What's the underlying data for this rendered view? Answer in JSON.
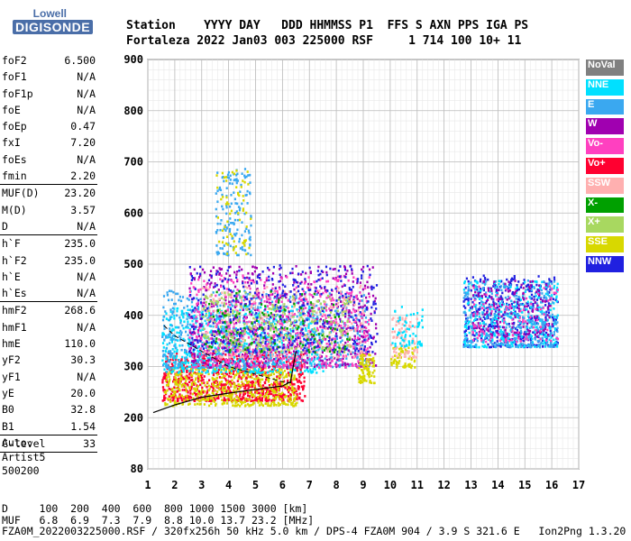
{
  "logo": {
    "top": "Lowell",
    "bottom": "DIGISONDE"
  },
  "header": {
    "line1": "Station    YYYY DAY   DDD HHMMSS P1  FFS S AXN PPS IGA PS",
    "line2": "Fortaleza 2022 Jan03 003 225000 RSF     1 714 100 10+ 11"
  },
  "params": [
    {
      "k": "foF2",
      "v": "6.500"
    },
    {
      "k": "foF1",
      "v": "N/A"
    },
    {
      "k": "foF1p",
      "v": "N/A"
    },
    {
      "k": "foE",
      "v": "N/A"
    },
    {
      "k": "foEp",
      "v": "0.47"
    },
    {
      "k": "fxI",
      "v": "7.20"
    },
    {
      "k": "foEs",
      "v": "N/A"
    },
    {
      "k": "fmin",
      "v": "2.20"
    },
    {
      "sep": true
    },
    {
      "k": "MUF(D)",
      "v": "23.20"
    },
    {
      "k": "M(D)",
      "v": "3.57"
    },
    {
      "k": "D",
      "v": "N/A"
    },
    {
      "sep": true
    },
    {
      "k": "h`F",
      "v": "235.0"
    },
    {
      "k": "h`F2",
      "v": "235.0"
    },
    {
      "k": "h`E",
      "v": "N/A"
    },
    {
      "k": "h`Es",
      "v": "N/A"
    },
    {
      "sep": true
    },
    {
      "k": "hmF2",
      "v": "268.6"
    },
    {
      "k": "hmF1",
      "v": "N/A"
    },
    {
      "k": "hmE",
      "v": "110.0"
    },
    {
      "k": "yF2",
      "v": "30.3"
    },
    {
      "k": "yF1",
      "v": "N/A"
    },
    {
      "k": "yE",
      "v": "20.0"
    },
    {
      "k": "B0",
      "v": "32.8"
    },
    {
      "k": "B1",
      "v": "1.54"
    },
    {
      "sep": true
    },
    {
      "k": "C-level",
      "v": "33"
    },
    {
      "sep": true
    }
  ],
  "auto": {
    "l1": "Auto:",
    "l2": "Artist5",
    "l3": "500200"
  },
  "legend": [
    {
      "label": "NoVal",
      "color": "#808080"
    },
    {
      "label": "NNE",
      "color": "#00e0ff"
    },
    {
      "label": "E",
      "color": "#3aa8f0"
    },
    {
      "label": "W",
      "color": "#a000b0"
    },
    {
      "label": "Vo-",
      "color": "#ff40c0"
    },
    {
      "label": "Vo+",
      "color": "#ff0030"
    },
    {
      "label": "SSW",
      "color": "#ffb0b0"
    },
    {
      "label": "X-",
      "color": "#00a000"
    },
    {
      "label": "X+",
      "color": "#a8d860"
    },
    {
      "label": "SSE",
      "color": "#d8d800"
    },
    {
      "label": "NNW",
      "color": "#2020e0"
    }
  ],
  "chart_data": {
    "type": "scatter",
    "xlabel": "",
    "ylabel": "",
    "xlim": [
      1,
      17
    ],
    "y_ticks": [
      80,
      200,
      300,
      400,
      500,
      600,
      700,
      800,
      900
    ],
    "x_ticks": [
      1,
      2,
      3,
      4,
      5,
      6,
      7,
      8,
      9,
      10,
      11,
      12,
      13,
      14,
      15,
      16,
      17
    ],
    "grid": true,
    "clusters": [
      {
        "series": "Vo+",
        "color": "#ff0030",
        "xr": [
          1.5,
          6.8
        ],
        "yr": [
          235,
          330
        ],
        "n": 900
      },
      {
        "series": "SSE",
        "color": "#d8d800",
        "xr": [
          1.6,
          6.5
        ],
        "yr": [
          225,
          300
        ],
        "n": 500
      },
      {
        "series": "NNE",
        "color": "#00e0ff",
        "xr": [
          1.5,
          7.5
        ],
        "yr": [
          290,
          420
        ],
        "n": 700
      },
      {
        "series": "E",
        "color": "#3aa8f0",
        "xr": [
          1.5,
          9.2
        ],
        "yr": [
          300,
          450
        ],
        "n": 700
      },
      {
        "series": "W",
        "color": "#a000b0",
        "xr": [
          2.5,
          9.5
        ],
        "yr": [
          300,
          500
        ],
        "n": 600
      },
      {
        "series": "Vo-",
        "color": "#ff40c0",
        "xr": [
          2.5,
          9.2
        ],
        "yr": [
          300,
          480
        ],
        "n": 600
      },
      {
        "series": "SSW",
        "color": "#ffb0b0",
        "xr": [
          3.0,
          9.0
        ],
        "yr": [
          320,
          460
        ],
        "n": 300
      },
      {
        "series": "NNW",
        "color": "#2020e0",
        "xr": [
          2.5,
          9.5
        ],
        "yr": [
          330,
          500
        ],
        "n": 400
      },
      {
        "series": "X+",
        "color": "#a8d860",
        "xr": [
          3.0,
          8.5
        ],
        "yr": [
          330,
          450
        ],
        "n": 250
      },
      {
        "series": "X-",
        "color": "#00a000",
        "xr": [
          3.0,
          8.5
        ],
        "yr": [
          330,
          450
        ],
        "n": 120
      },
      {
        "series": "E",
        "color": "#3aa8f0",
        "xr": [
          3.5,
          4.8
        ],
        "yr": [
          520,
          690
        ],
        "n": 150
      },
      {
        "series": "SSE",
        "color": "#d8d800",
        "xr": [
          3.5,
          4.8
        ],
        "yr": [
          520,
          690
        ],
        "n": 60
      },
      {
        "series": "SSE",
        "color": "#d8d800",
        "xr": [
          8.8,
          9.4
        ],
        "yr": [
          270,
          330
        ],
        "n": 80
      },
      {
        "series": "SSE",
        "color": "#d8d800",
        "xr": [
          10.0,
          10.9
        ],
        "yr": [
          300,
          340
        ],
        "n": 60
      },
      {
        "series": "SSW",
        "color": "#ffb0b0",
        "xr": [
          10.0,
          11.0
        ],
        "yr": [
          320,
          400
        ],
        "n": 80
      },
      {
        "series": "NNE",
        "color": "#00e0ff",
        "xr": [
          10.0,
          11.2
        ],
        "yr": [
          340,
          420
        ],
        "n": 60
      },
      {
        "series": "NNW",
        "color": "#2020e0",
        "xr": [
          12.7,
          16.2
        ],
        "yr": [
          340,
          480
        ],
        "n": 450
      },
      {
        "series": "NNE",
        "color": "#00e0ff",
        "xr": [
          12.7,
          16.2
        ],
        "yr": [
          340,
          470
        ],
        "n": 350
      },
      {
        "series": "E",
        "color": "#3aa8f0",
        "xr": [
          12.7,
          16.2
        ],
        "yr": [
          340,
          470
        ],
        "n": 300
      },
      {
        "series": "W",
        "color": "#a000b0",
        "xr": [
          13.0,
          16.0
        ],
        "yr": [
          360,
          470
        ],
        "n": 150
      },
      {
        "series": "Vo-",
        "color": "#ff40c0",
        "xr": [
          13.0,
          16.2
        ],
        "yr": [
          350,
          460
        ],
        "n": 100
      }
    ],
    "profile_upper": [
      [
        1.6,
        380
      ],
      [
        2.0,
        360
      ],
      [
        3.0,
        330
      ],
      [
        4.0,
        300
      ],
      [
        5.0,
        285
      ],
      [
        6.0,
        270
      ],
      [
        6.4,
        268
      ]
    ],
    "profile_lower": [
      [
        1.2,
        210
      ],
      [
        2.0,
        225
      ],
      [
        3.0,
        240
      ],
      [
        4.0,
        248
      ],
      [
        5.0,
        255
      ],
      [
        6.0,
        262
      ],
      [
        6.3,
        270
      ],
      [
        6.5,
        330
      ]
    ]
  },
  "footer": {
    "l1": "D     100  200  400  600  800 1000 1500 3000 [km]",
    "l2": "MUF   6.8  6.9  7.3  7.9  8.8 10.0 13.7 23.2 [MHz]",
    "l3": "FZA0M_2022003225000.RSF / 320fx256h 50 kHz 5.0 km / DPS-4 FZA0M 904 / 3.9 S 321.6 E   Ion2Png 1.3.20"
  }
}
